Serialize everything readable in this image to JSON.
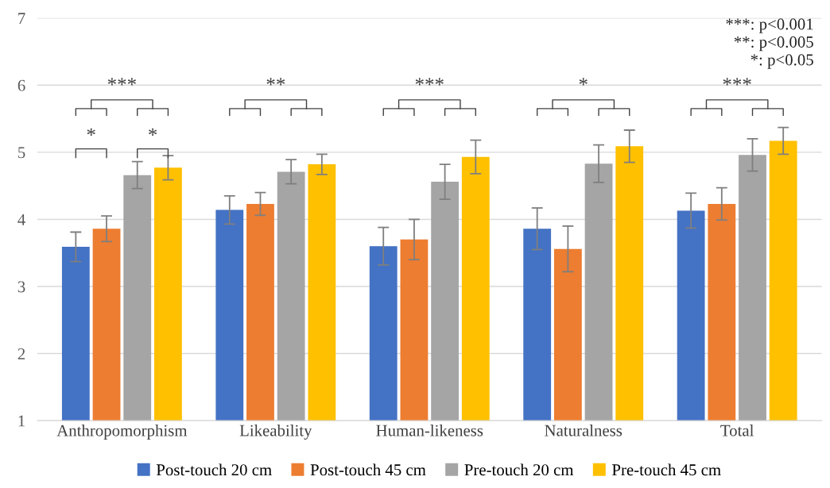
{
  "chart_data": {
    "type": "bar",
    "categories": [
      "Anthropomorphism",
      "Likeability",
      "Human-likeness",
      "Naturalness",
      "Total"
    ],
    "series": [
      {
        "name": "Post-touch 20 cm",
        "color": "#4472c4",
        "values": [
          3.59,
          4.14,
          3.6,
          3.86,
          4.13
        ],
        "errors": [
          0.22,
          0.21,
          0.28,
          0.31,
          0.26
        ]
      },
      {
        "name": "Post-touch 45 cm",
        "color": "#ed7d31",
        "values": [
          3.86,
          4.23,
          3.7,
          3.56,
          4.23
        ],
        "errors": [
          0.19,
          0.17,
          0.3,
          0.34,
          0.24
        ]
      },
      {
        "name": "Pre-touch 20 cm",
        "color": "#a5a5a5",
        "values": [
          4.66,
          4.71,
          4.56,
          4.83,
          4.96
        ],
        "errors": [
          0.2,
          0.18,
          0.26,
          0.28,
          0.24
        ]
      },
      {
        "name": "Pre-touch 45 cm",
        "color": "#ffc000",
        "values": [
          4.77,
          4.82,
          4.93,
          5.09,
          5.17
        ],
        "errors": [
          0.18,
          0.15,
          0.25,
          0.24,
          0.2
        ]
      }
    ],
    "ylim": [
      1,
      7
    ],
    "yticks": [
      1,
      2,
      3,
      4,
      5,
      6,
      7
    ],
    "grid": "y",
    "legend": "bottom",
    "annotations": [
      "***",
      "**",
      "***",
      "*",
      "***",
      "*",
      "*",
      "***: p<0.001\n**: p<0.005\n*: p<0.05"
    ]
  }
}
